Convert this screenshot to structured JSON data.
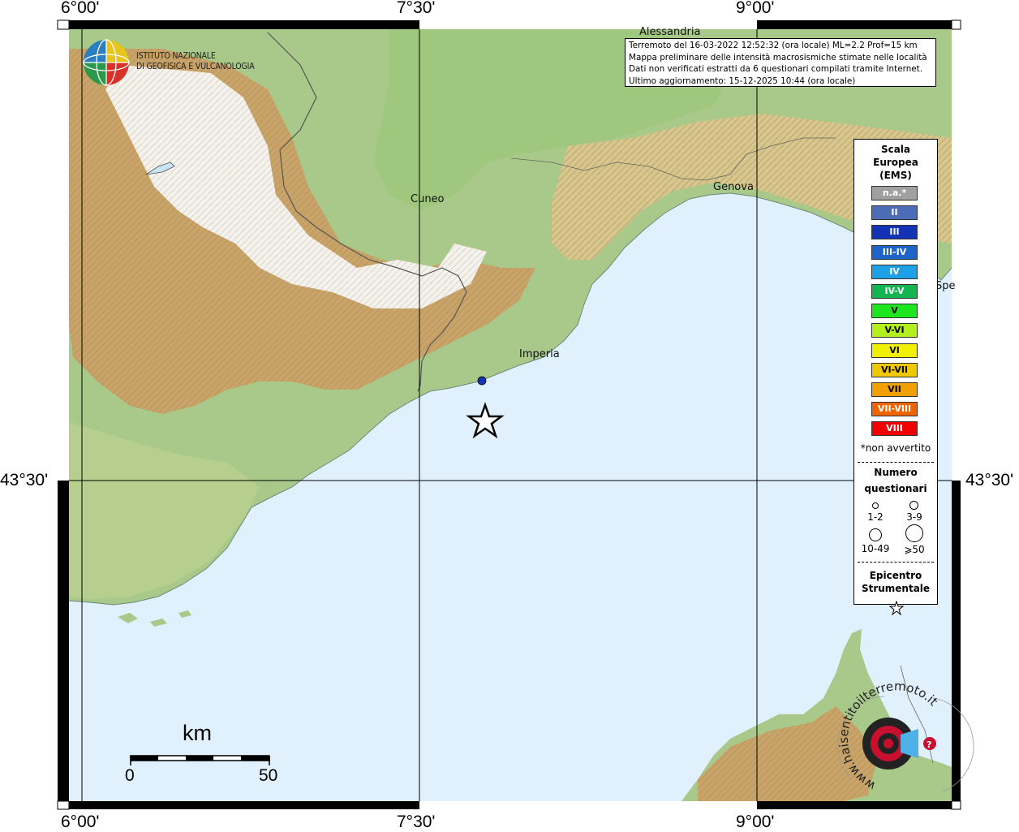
{
  "coords": {
    "top": [
      "6°00'",
      "7°30'",
      "9°00'"
    ],
    "bottom": [
      "6°00'",
      "7°30'",
      "9°00'"
    ],
    "left_lat": "43°30'",
    "right_lat": "43°30'"
  },
  "institute": {
    "line1": "ISTITUTO NAZIONALE",
    "line2": "DI GEOFISICA E VULCANOLOGIA"
  },
  "info": {
    "line1": "Terremoto del 16-03-2022 12:52:32 (ora locale) ML=2.2 Prof=15 km",
    "line2": "Mappa preliminare delle intensità macrosismiche stimate nelle località",
    "line3": "Dati non verificati estratti da 6 questionari compilati tramite Internet.",
    "line4": "Ultimo aggiornamento: 15-12-2025 10:44 (ora locale)"
  },
  "cities": {
    "alessandria": "Alessandria",
    "cuneo": "Cuneo",
    "genova": "Genova",
    "imperia": "Imperia",
    "spezia_partial": "Spe"
  },
  "legend": {
    "title1": "Scala",
    "title2": "Europea",
    "title3": "(EMS)",
    "scale": [
      {
        "label": "n.a.*",
        "color": "#a0a0a0"
      },
      {
        "label": "II",
        "color": "#4c6cb8"
      },
      {
        "label": "III",
        "color": "#1432b4"
      },
      {
        "label": "III-IV",
        "color": "#1e64c8"
      },
      {
        "label": "IV",
        "color": "#1ea0e6"
      },
      {
        "label": "IV-V",
        "color": "#14b450"
      },
      {
        "label": "V",
        "color": "#1ee61e"
      },
      {
        "label": "V-VI",
        "color": "#b4f01e"
      },
      {
        "label": "VI",
        "color": "#f0f000"
      },
      {
        "label": "VI-VII",
        "color": "#f0c800"
      },
      {
        "label": "VII",
        "color": "#f0a000"
      },
      {
        "label": "VII-VIII",
        "color": "#f06400"
      },
      {
        "label": "VIII",
        "color": "#f00000"
      }
    ],
    "not_felt": "*non avvertito",
    "numero": "Numero",
    "questionari": "questionari",
    "sizes": [
      "1-2",
      "3-9",
      "10-49",
      "⩾50"
    ],
    "epicentro1": "Epicentro",
    "epicentro2": "Strumentale"
  },
  "scalebar": {
    "unit": "km",
    "min": "0",
    "max": "50"
  },
  "watermark": {
    "text": "www.haisentitoilterremoto.it"
  },
  "observation": {
    "intensity_color": "#1432b4",
    "questionnaire_class": "1-2"
  },
  "colors": {
    "sea": "#e0f0fc",
    "frame": "#000000"
  }
}
